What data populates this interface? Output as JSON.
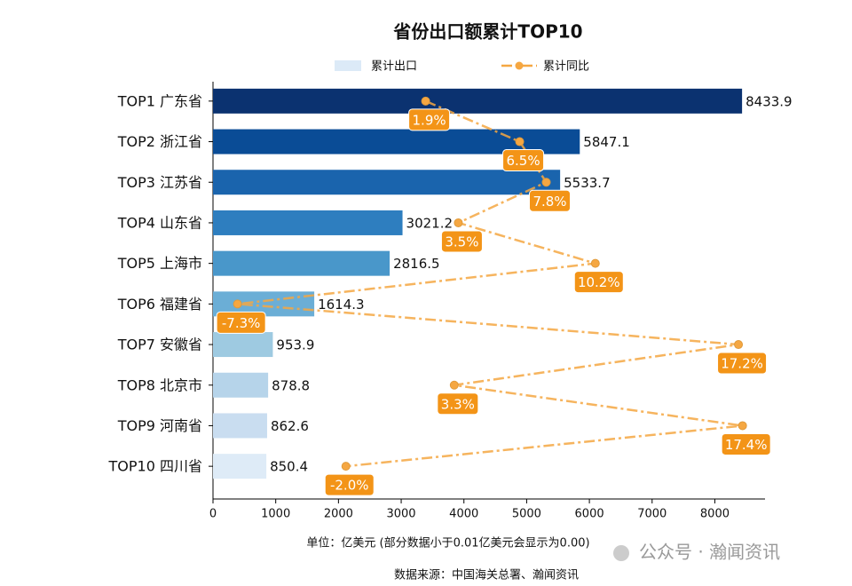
{
  "chart_data": {
    "type": "bar",
    "orientation": "horizontal",
    "title": "省份出口额累计TOP10",
    "categories": [
      "TOP1 广东省",
      "TOP2 浙江省",
      "TOP3 江苏省",
      "TOP4 山东省",
      "TOP5 上海市",
      "TOP6 福建省",
      "TOP7 安徽省",
      "TOP8 北京市",
      "TOP9 河南省",
      "TOP10 四川省"
    ],
    "series": [
      {
        "name": "累计出口",
        "color": "#dceaf7",
        "colors": [
          "#0b3270",
          "#0a4c96",
          "#1a64ad",
          "#2e7ebf",
          "#4997ca",
          "#6baed6",
          "#9ecae1",
          "#b6d4ea",
          "#c9ddf0",
          "#deebf7"
        ],
        "values": [
          8433.9,
          5847.1,
          5533.7,
          3021.2,
          2816.5,
          1614.3,
          953.9,
          878.8,
          862.6,
          850.4
        ]
      },
      {
        "name": "累计同比",
        "type": "line",
        "axis": "x2",
        "color": "#f5a742",
        "label_color": "#f39417",
        "values": [
          1.9,
          6.5,
          7.8,
          3.5,
          10.2,
          -7.3,
          17.2,
          3.3,
          17.4,
          -2.0
        ],
        "value_labels": [
          "1.9%",
          "6.5%",
          "7.8%",
          "3.5%",
          "10.2%",
          "-7.3%",
          "17.2%",
          "3.3%",
          "17.4%",
          "-2.0%"
        ]
      }
    ],
    "xlim": [
      0,
      8800
    ],
    "xticks": [
      0,
      1000,
      2000,
      3000,
      4000,
      5000,
      6000,
      7000,
      8000
    ],
    "x2lim": [
      -8.5,
      18.5
    ],
    "xlabel": "单位：亿美元  (部分数据小于0.01亿美元会显示为0.00)",
    "source": "数据来源：中国海关总署、瀚闻资讯",
    "watermark": "公众号 · 瀚闻资讯"
  }
}
